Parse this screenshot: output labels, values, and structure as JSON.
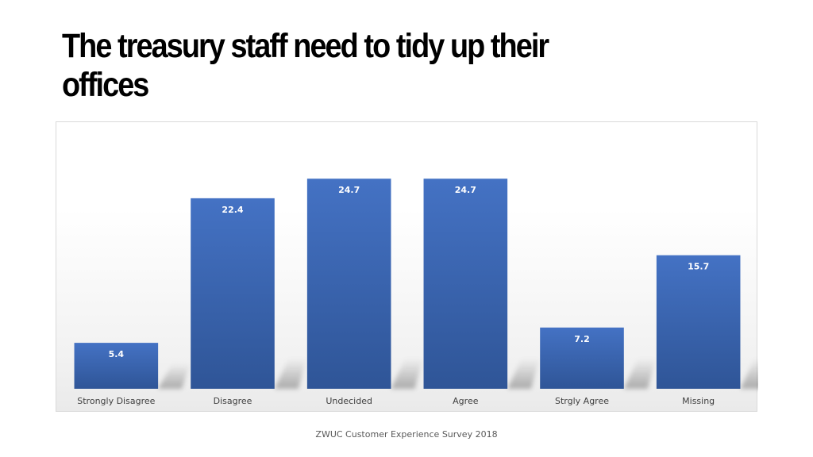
{
  "slide": {
    "title": "The treasury staff need to tidy up their offices",
    "footer": "ZWUC Customer Experience Survey 2018"
  },
  "chart_data": {
    "type": "bar",
    "categories": [
      "Strongly Disagree",
      "Disagree",
      "Undecided",
      "Agree",
      "Strgly Agree",
      "Missing"
    ],
    "values": [
      5.4,
      22.4,
      24.7,
      24.7,
      7.2,
      15.7
    ],
    "data_labels": [
      "5.4",
      "22.4",
      "24.7",
      "24.7",
      "7.2",
      "15.7"
    ],
    "title": "",
    "xlabel": "",
    "ylabel": "",
    "ylim": [
      0,
      25
    ],
    "grid": false,
    "legend": "none",
    "colors": {
      "bar": "#4472c4",
      "bar_dark": "#2f5597",
      "label": "#ffffff"
    }
  }
}
